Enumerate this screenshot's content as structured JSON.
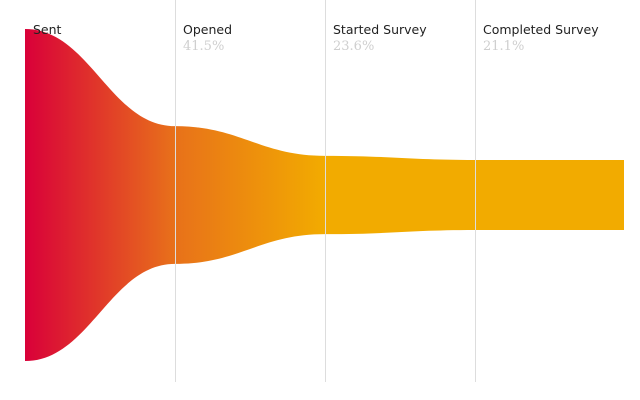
{
  "chart_data": {
    "type": "funnel",
    "title": "",
    "stages": [
      {
        "label": "Sent",
        "percent_label": "",
        "value": 100
      },
      {
        "label": "Opened",
        "percent_label": "41.5%",
        "value": 41.5
      },
      {
        "label": "Started Survey",
        "percent_label": "23.6%",
        "value": 23.6
      },
      {
        "label": "Completed Survey",
        "percent_label": "21.1%",
        "value": 21.1
      }
    ],
    "colors": {
      "start": "#d90039",
      "mid": "#e8711a",
      "end": "#f2ab00",
      "divider": "#dddddd",
      "label": "#222222",
      "percent": "#cfcfcf"
    }
  }
}
